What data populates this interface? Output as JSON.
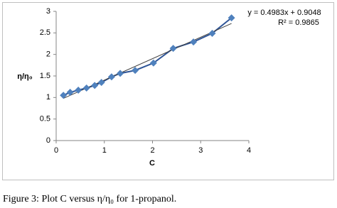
{
  "chart_data": {
    "type": "scatter-line",
    "x": [
      0.15,
      0.29,
      0.46,
      0.63,
      0.8,
      0.94,
      1.15,
      1.33,
      1.64,
      2.02,
      2.43,
      2.85,
      3.24,
      3.64
    ],
    "values": [
      1.05,
      1.12,
      1.17,
      1.22,
      1.28,
      1.35,
      1.48,
      1.56,
      1.63,
      1.8,
      2.14,
      2.29,
      2.49,
      2.85
    ],
    "color": "#4f81bd",
    "line_color": "#2f5597",
    "xlabel": "C",
    "ylabel": "η/η₀",
    "xlim": [
      0,
      4
    ],
    "xticks": [
      0,
      1,
      2,
      3,
      4
    ],
    "ylim": [
      0,
      3
    ],
    "yticks": [
      0,
      0.5,
      1,
      1.5,
      2,
      2.5,
      3
    ],
    "trendline": {
      "equation": "y = 0.4983x + 0.9048",
      "r2": "R² = 0.9865",
      "slope": 0.4983,
      "intercept": 0.9048,
      "color": "#404040"
    },
    "caption": "Figure 3: Plot C versus η/η₀ for 1-propanol."
  }
}
